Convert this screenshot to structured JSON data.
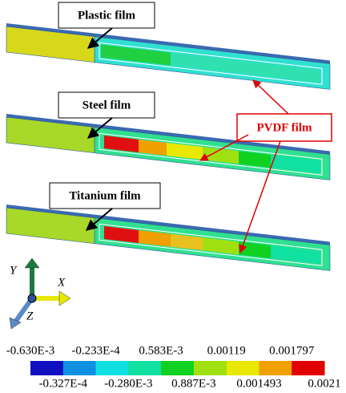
{
  "labels": {
    "plastic": "Plastic film",
    "steel": "Steel film",
    "titanium": "Titanium film",
    "pvdf": "PVDF film"
  },
  "axes": {
    "y": "Y",
    "x": "X",
    "z": "Z"
  },
  "colorbar": {
    "colors": [
      "#1010c0",
      "#1090e0",
      "#10e0e0",
      "#10e0a0",
      "#10d020",
      "#a0e010",
      "#e8e800",
      "#f0a000",
      "#e00000"
    ],
    "top_labels": [
      "-0.630E-3",
      "-0.233E-4",
      "0.583E-3",
      "0.00119",
      "0.001797"
    ],
    "bottom_labels": [
      "-0.327E-4",
      "-0.280E-3",
      "0.887E-3",
      "0.001493",
      "0.0021"
    ]
  }
}
